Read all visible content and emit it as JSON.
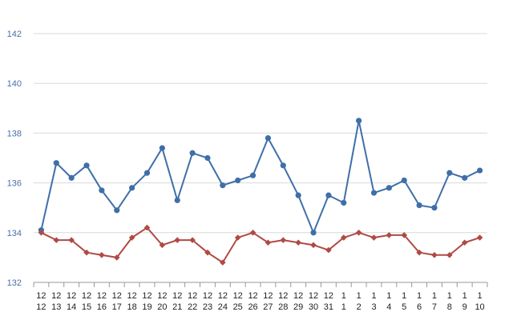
{
  "chart_data": {
    "type": "line",
    "categories": [
      [
        "12",
        "12"
      ],
      [
        "12",
        "13"
      ],
      [
        "12",
        "14"
      ],
      [
        "12",
        "15"
      ],
      [
        "12",
        "16"
      ],
      [
        "12",
        "17"
      ],
      [
        "12",
        "18"
      ],
      [
        "12",
        "19"
      ],
      [
        "12",
        "20"
      ],
      [
        "12",
        "21"
      ],
      [
        "12",
        "22"
      ],
      [
        "12",
        "23"
      ],
      [
        "12",
        "24"
      ],
      [
        "12",
        "25"
      ],
      [
        "12",
        "26"
      ],
      [
        "12",
        "27"
      ],
      [
        "12",
        "28"
      ],
      [
        "12",
        "29"
      ],
      [
        "12",
        "30"
      ],
      [
        "12",
        "31"
      ],
      [
        "1",
        "1"
      ],
      [
        "1",
        "2"
      ],
      [
        "1",
        "3"
      ],
      [
        "1",
        "4"
      ],
      [
        "1",
        "5"
      ],
      [
        "1",
        "6"
      ],
      [
        "1",
        "7"
      ],
      [
        "1",
        "8"
      ],
      [
        "1",
        "9"
      ],
      [
        "1",
        "10"
      ]
    ],
    "series": [
      {
        "color": "#3f6fa8",
        "marker": "circle",
        "values": [
          134.1,
          136.8,
          136.2,
          136.7,
          135.7,
          134.9,
          135.8,
          136.4,
          137.4,
          135.3,
          137.2,
          137.0,
          135.9,
          136.1,
          136.3,
          137.8,
          136.7,
          135.5,
          134.0,
          135.5,
          135.2,
          138.5,
          135.6,
          135.8,
          136.1,
          135.1,
          135.0,
          136.4,
          136.2,
          136.5
        ]
      },
      {
        "color": "#b04a45",
        "marker": "diamond",
        "values": [
          134.0,
          133.7,
          133.7,
          133.2,
          133.1,
          133.0,
          133.8,
          134.2,
          133.5,
          133.7,
          133.7,
          133.2,
          132.8,
          133.8,
          134.0,
          133.6,
          133.7,
          133.6,
          133.5,
          133.3,
          133.8,
          134.0,
          133.8,
          133.9,
          133.9,
          133.2,
          133.1,
          133.1,
          133.6,
          133.8
        ]
      }
    ],
    "yticks": [
      "132",
      "134",
      "136",
      "138",
      "140",
      "142"
    ],
    "ylim": [
      132,
      142
    ],
    "grid": true,
    "legend": "none"
  }
}
